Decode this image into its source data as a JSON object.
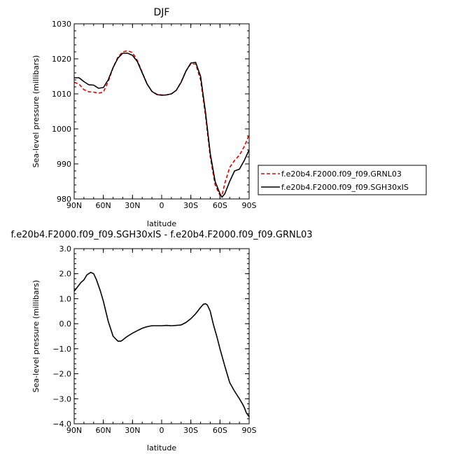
{
  "chart_data": [
    {
      "type": "line",
      "title": "DJF",
      "xlabel": "latitude",
      "ylabel": "Sea-level pressure (millibars)",
      "xlim": [
        90,
        -90
      ],
      "ylim": [
        980,
        1030
      ],
      "xticks": [
        90,
        60,
        30,
        0,
        -30,
        -60,
        -90
      ],
      "xtick_labels": [
        "90N",
        "60N",
        "30N",
        "0",
        "30S",
        "60S",
        "90S"
      ],
      "yticks": [
        980,
        990,
        1000,
        1010,
        1020,
        1030
      ],
      "ytick_labels": [
        "980",
        "990",
        "1000",
        "1010",
        "1020",
        "1030"
      ],
      "legend": "right",
      "series": [
        {
          "name": "f.e20b4.F2000.f09_f09.GRNL03",
          "color": "#e00000",
          "dash": "dashed",
          "x": [
            90,
            85,
            80,
            75,
            70,
            65,
            60,
            55,
            50,
            45,
            40,
            35,
            30,
            25,
            20,
            15,
            10,
            5,
            0,
            -5,
            -10,
            -15,
            -20,
            -25,
            -30,
            -35,
            -40,
            -45,
            -50,
            -55,
            -60,
            -62,
            -65,
            -70,
            -75,
            -80,
            -85,
            -90
          ],
          "values": [
            1013.3,
            1012.8,
            1011.2,
            1010.6,
            1010.5,
            1010.2,
            1010.5,
            1013.5,
            1017.5,
            1020.5,
            1022.0,
            1022.3,
            1021.8,
            1019.5,
            1016.2,
            1012.8,
            1010.7,
            1009.9,
            1009.7,
            1009.7,
            1010.0,
            1011.0,
            1013.4,
            1016.5,
            1018.6,
            1018.5,
            1014.0,
            1004.0,
            992.0,
            984.0,
            981.0,
            981.0,
            984.5,
            989.0,
            991.0,
            992.5,
            995.0,
            998.3
          ]
        },
        {
          "name": "f.e20b4.F2000.f09_f09.SGH30xIS",
          "color": "#000000",
          "dash": "solid",
          "x": [
            90,
            85,
            80,
            75,
            70,
            65,
            60,
            55,
            50,
            45,
            40,
            35,
            30,
            25,
            20,
            15,
            10,
            5,
            0,
            -5,
            -10,
            -15,
            -20,
            -25,
            -30,
            -35,
            -40,
            -45,
            -50,
            -55,
            -60,
            -62,
            -65,
            -70,
            -75,
            -80,
            -85,
            -90
          ],
          "values": [
            1014.6,
            1014.6,
            1013.5,
            1012.6,
            1012.5,
            1011.6,
            1011.8,
            1014.0,
            1017.5,
            1020.2,
            1021.6,
            1021.6,
            1021.0,
            1019.2,
            1016.0,
            1012.8,
            1010.7,
            1009.8,
            1009.6,
            1009.7,
            1010.0,
            1011.0,
            1013.3,
            1016.5,
            1018.8,
            1019.0,
            1015.0,
            1005.0,
            993.0,
            985.0,
            981.5,
            980.5,
            981.5,
            985.0,
            988.0,
            988.5,
            991.0,
            994.0
          ]
        }
      ]
    },
    {
      "type": "line",
      "title": "f.e20b4.F2000.f09_f09.SGH30xIS - f.e20b4.F2000.f09_f09.GRNL03",
      "xlabel": "latitude",
      "ylabel": "Sea-level pressure (millibars)",
      "xlim": [
        90,
        -90
      ],
      "ylim": [
        -4.0,
        3.0
      ],
      "xticks": [
        90,
        60,
        30,
        0,
        -30,
        -60,
        -90
      ],
      "xtick_labels": [
        "90N",
        "60N",
        "30N",
        "0",
        "30S",
        "60S",
        "90S"
      ],
      "yticks": [
        -4.0,
        -3.0,
        -2.0,
        -1.0,
        0.0,
        1.0,
        2.0,
        3.0
      ],
      "ytick_labels": [
        "−4.0",
        "−3.0",
        "−2.0",
        "−1.0",
        "0.0",
        "1.0",
        "2.0",
        "3.0"
      ],
      "series": [
        {
          "color": "#000000",
          "dash": "solid",
          "x": [
            90,
            87,
            83,
            80,
            77,
            73,
            70,
            67,
            63,
            60,
            55,
            50,
            45,
            42,
            40,
            37,
            33,
            30,
            25,
            20,
            15,
            10,
            5,
            0,
            -5,
            -10,
            -15,
            -20,
            -25,
            -30,
            -35,
            -40,
            -43,
            -45,
            -47,
            -50,
            -53,
            -57,
            -60,
            -65,
            -70,
            -75,
            -80,
            -83,
            -85,
            -87,
            -90
          ],
          "values": [
            1.3,
            1.45,
            1.65,
            1.75,
            1.95,
            2.05,
            2.0,
            1.75,
            1.3,
            0.9,
            0.1,
            -0.5,
            -0.7,
            -0.7,
            -0.65,
            -0.55,
            -0.45,
            -0.38,
            -0.28,
            -0.18,
            -0.12,
            -0.08,
            -0.08,
            -0.08,
            -0.07,
            -0.08,
            -0.07,
            -0.05,
            0.05,
            0.2,
            0.4,
            0.65,
            0.78,
            0.8,
            0.75,
            0.5,
            0.0,
            -0.55,
            -1.0,
            -1.7,
            -2.35,
            -2.7,
            -3.0,
            -3.2,
            -3.35,
            -3.55,
            -3.72
          ]
        }
      ]
    }
  ]
}
